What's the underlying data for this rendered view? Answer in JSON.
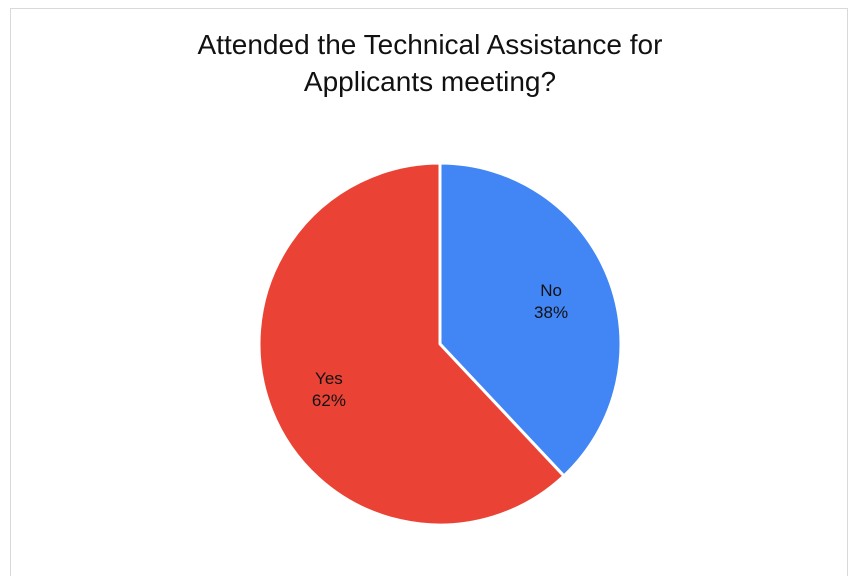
{
  "chart_data": {
    "type": "pie",
    "title": "Attended the Technical Assistance for\nApplicants meeting?",
    "categories": [
      "No",
      "Yes"
    ],
    "values": [
      38,
      62
    ],
    "value_labels": [
      "38%",
      "62%"
    ],
    "colors": [
      "#4285f4",
      "#ea4335"
    ],
    "legend": "none",
    "labels_position": "inside"
  }
}
